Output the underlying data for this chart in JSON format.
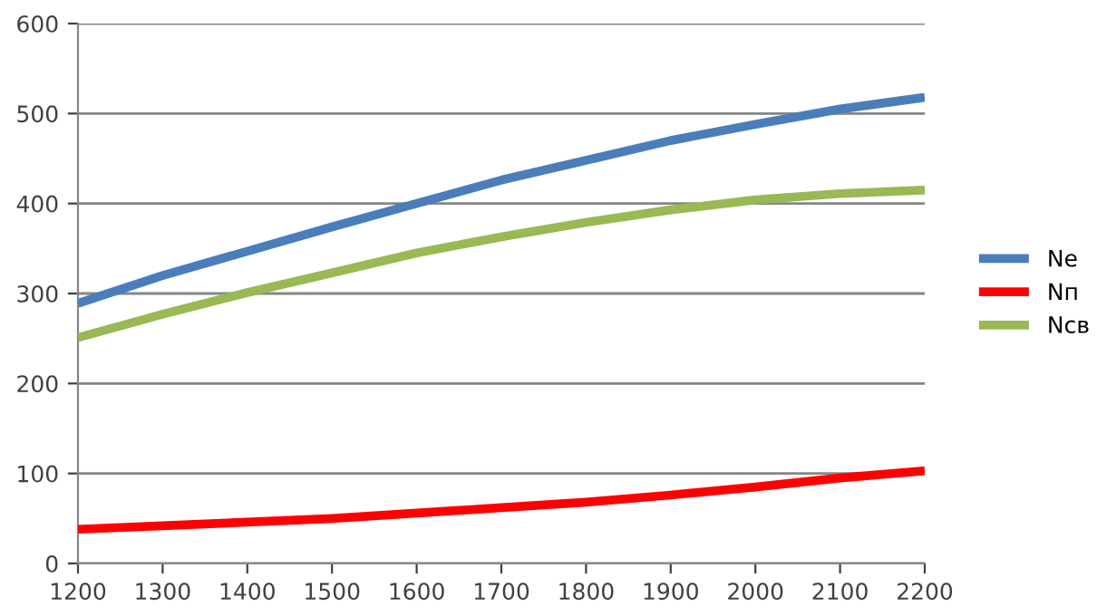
{
  "chart_data": {
    "type": "line",
    "x": [
      1200,
      1300,
      1400,
      1500,
      1600,
      1700,
      1800,
      1900,
      2000,
      2100,
      2200
    ],
    "series": [
      {
        "name": "Ne",
        "color": "#4a7ebb",
        "values": [
          289,
          320,
          347,
          374,
          400,
          426,
          448,
          470,
          488,
          505,
          518
        ]
      },
      {
        "name": "Nп",
        "color": "#ff0000",
        "values": [
          38,
          42,
          46,
          50,
          56,
          62,
          68,
          76,
          85,
          95,
          103
        ]
      },
      {
        "name": "Nсв",
        "color": "#98b954",
        "values": [
          251,
          277,
          301,
          323,
          345,
          363,
          379,
          393,
          404,
          411,
          415
        ]
      }
    ],
    "xlim": [
      1200,
      2200
    ],
    "xticks": [
      1200,
      1300,
      1400,
      1500,
      1600,
      1700,
      1800,
      1900,
      2000,
      2100,
      2200
    ],
    "ylim": [
      0,
      600
    ],
    "yticks": [
      0,
      100,
      200,
      300,
      400,
      500,
      600
    ],
    "grid": "y",
    "legend": "right",
    "marker": "none",
    "line_style": "solid"
  }
}
